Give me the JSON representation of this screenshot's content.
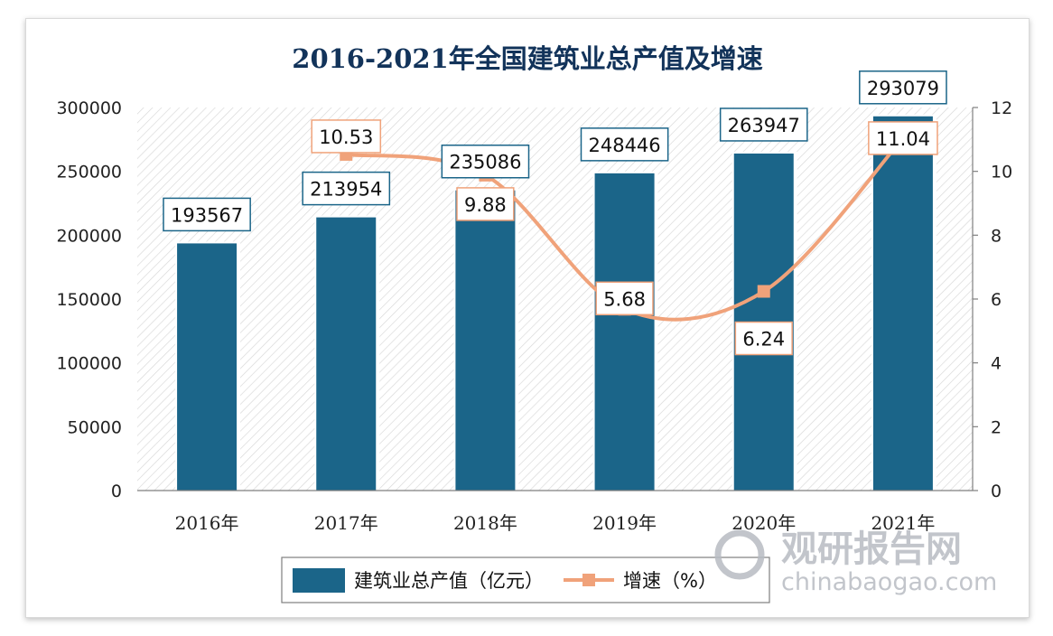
{
  "chart_data": {
    "type": "bar",
    "title": "2016-2021年全国建筑业总产值及增速",
    "categories": [
      "2016年",
      "2017年",
      "2018年",
      "2019年",
      "2020年",
      "2021年"
    ],
    "series": [
      {
        "name": "建筑业总产值（亿元）",
        "type": "bar",
        "axis": "left",
        "values": [
          193567,
          213954,
          235086,
          248446,
          263947,
          293079
        ],
        "color": "#1b6589"
      },
      {
        "name": "增速（%）",
        "type": "line",
        "axis": "right",
        "values": [
          null,
          10.53,
          9.88,
          5.68,
          6.24,
          11.04
        ],
        "color": "#f0a27a"
      }
    ],
    "y_left": {
      "min": 0,
      "max": 300000,
      "ticks": [
        0,
        50000,
        100000,
        150000,
        200000,
        250000,
        300000
      ]
    },
    "y_right": {
      "min": 0,
      "max": 12,
      "ticks": [
        0,
        2,
        4,
        6,
        8,
        10,
        12
      ]
    },
    "plot_background": "hatched",
    "legend_position": "bottom-center",
    "label_border_colors": {
      "bar": "#1b6589",
      "line": "#f0a27a"
    }
  },
  "watermark": {
    "cn": "观研报告网",
    "en": "chinabaogao.com"
  }
}
